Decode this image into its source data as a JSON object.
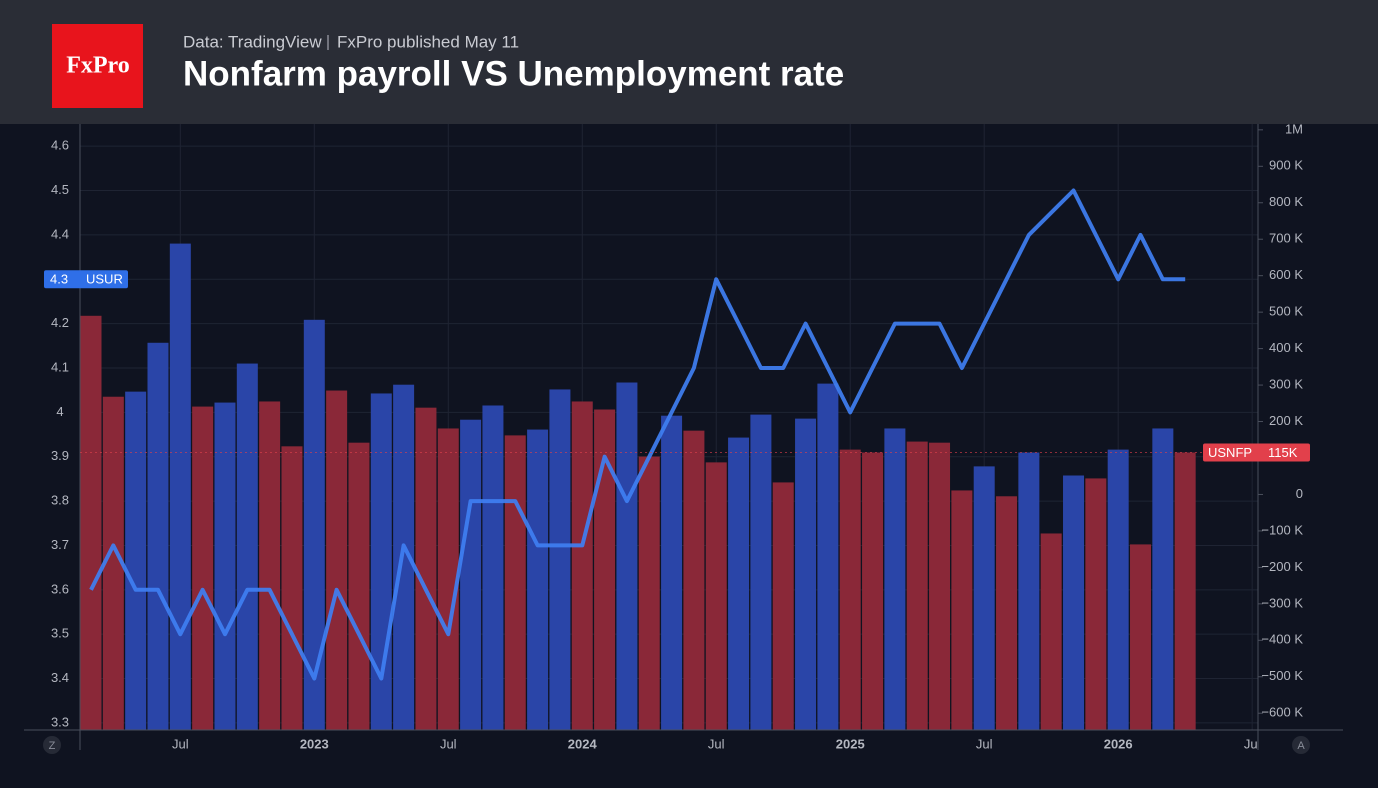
{
  "header": {
    "logo": "FxPro",
    "source": "Data: TradingView",
    "published": "FxPro published May 11"
  },
  "controls": [
    "Z",
    "A"
  ],
  "chart_data": {
    "type": "combo",
    "title": "Nonfarm payroll VS Unemployment rate",
    "categories": [
      null,
      null,
      null,
      null,
      "Jul",
      null,
      null,
      null,
      null,
      null,
      "2023",
      null,
      null,
      null,
      null,
      null,
      "Jul",
      null,
      null,
      null,
      null,
      null,
      "2024",
      null,
      null,
      null,
      null,
      null,
      "Jul",
      null,
      null,
      null,
      null,
      null,
      "2025",
      null,
      null,
      null,
      null,
      null,
      "Jul",
      null,
      null,
      null,
      null,
      null,
      "2026",
      null,
      null,
      null,
      null,
      null,
      "Jul"
    ],
    "series": [
      {
        "name": "USNFP",
        "type": "bar",
        "axis": "y2",
        "color": "#e2404b",
        "colors": [
          "#8a2838",
          "#8a2838",
          "#2a45a8",
          "#2a45a8",
          "#2a45a8",
          "#8a2838",
          "#2a45a8",
          "#2a45a8",
          "#8a2838",
          "#8a2838",
          "#2a45a8",
          "#8a2838",
          "#8a2838",
          "#2a45a8",
          "#2a45a8",
          "#8a2838",
          "#8a2838",
          "#2a45a8",
          "#2a45a8",
          "#8a2838",
          "#2a45a8",
          "#2a45a8",
          "#8a2838",
          "#8a2838",
          "#2a45a8",
          "#8a2838",
          "#2a45a8",
          "#8a2838",
          "#8a2838",
          "#2a45a8",
          "#2a45a8",
          "#8a2838",
          "#2a45a8",
          "#2a45a8",
          "#8a2838",
          "#8a2838",
          "#2a45a8",
          "#8a2838",
          "#8a2838",
          "#8a2838",
          "#2a45a8",
          "#8a2838",
          "#2a45a8",
          "#8a2838",
          "#2a45a8",
          "#8a2838",
          "#2a45a8",
          "#8a2838",
          "#2a45a8",
          "#8a2838",
          null,
          null,
          null
        ],
        "values": [
          490000,
          268000,
          282000,
          416000,
          688000,
          241000,
          252000,
          359000,
          255000,
          132000,
          479000,
          285000,
          142000,
          277000,
          301000,
          238000,
          181000,
          205000,
          244000,
          162000,
          178000,
          288000,
          255000,
          233000,
          307000,
          104000,
          216000,
          175000,
          88000,
          156000,
          219000,
          33000,
          208000,
          304000,
          123000,
          115000,
          181000,
          145000,
          142000,
          11000,
          77000,
          -5000,
          115000,
          -107000,
          52000,
          44000,
          123000,
          -137000,
          181000,
          115000,
          null,
          null,
          null
        ],
        "value_labels": [
          null,
          null,
          null,
          null,
          null,
          null,
          null,
          null,
          null,
          null,
          null,
          null,
          null,
          null,
          null,
          null,
          null,
          null,
          null,
          null,
          null,
          null,
          null,
          null,
          null,
          null,
          null,
          null,
          null,
          null,
          null,
          null,
          null,
          null,
          null,
          null,
          null,
          null,
          null,
          null,
          null,
          null,
          null,
          null,
          null,
          null,
          null,
          null,
          null,
          "115K",
          null,
          null,
          null
        ]
      },
      {
        "name": "USUR",
        "type": "line",
        "color": "#3f7ff2",
        "values": [
          3.6,
          3.7,
          3.6,
          3.6,
          3.5,
          3.6,
          3.5,
          3.6,
          3.6,
          3.5,
          3.4,
          3.6,
          3.5,
          3.4,
          3.7,
          3.6,
          3.5,
          3.8,
          3.8,
          3.8,
          3.7,
          3.7,
          3.7,
          3.9,
          3.8,
          3.9,
          4.0,
          4.1,
          4.3,
          4.2,
          4.1,
          4.1,
          4.2,
          4.1,
          4.0,
          4.1,
          4.2,
          4.2,
          4.2,
          4.1,
          4.2,
          4.3,
          4.4,
          4.45,
          4.5,
          4.4,
          4.3,
          4.4,
          4.3,
          4.3,
          null,
          null,
          null
        ]
      }
    ],
    "ylim": [
      3.284,
      4.65
    ],
    "yticks": [
      3.3,
      3.4,
      3.5,
      3.6,
      3.7,
      3.8,
      3.9,
      4,
      4.1,
      4.2,
      4.3,
      4.4,
      4.5,
      4.6
    ],
    "y2lim": [
      -646000,
      1016000
    ],
    "y2ticks": [
      {
        "value": 1000000,
        "label": "1M"
      },
      {
        "value": 900000,
        "label": "900 K"
      },
      {
        "value": 800000,
        "label": "800 K"
      },
      {
        "value": 700000,
        "label": "700 K"
      },
      {
        "value": 600000,
        "label": "600 K"
      },
      {
        "value": 500000,
        "label": "500 K"
      },
      {
        "value": 400000,
        "label": "400 K"
      },
      {
        "value": 300000,
        "label": "300 K"
      },
      {
        "value": 200000,
        "label": "200 K"
      },
      {
        "value": 100000,
        "label": "100 K"
      },
      0,
      {
        "value": -100000,
        "label": "−100 K"
      },
      {
        "value": -200000,
        "label": "−200 K"
      },
      {
        "value": -300000,
        "label": "−300 K"
      },
      {
        "value": -400000,
        "label": "−400 K"
      },
      {
        "value": -500000,
        "label": "−500 K"
      },
      {
        "value": -600000,
        "label": "−600 K"
      }
    ],
    "grid": true
  }
}
